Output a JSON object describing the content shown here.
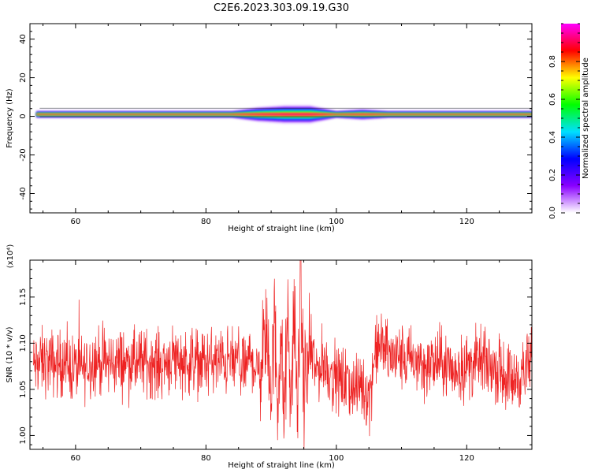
{
  "figure_title": "C2E6.2023.303.09.19.G30",
  "chart_data": [
    {
      "type": "heatmap",
      "title": "",
      "xlabel": "Height of straight line (km)",
      "ylabel": "Frequency (Hz)",
      "xlim": [
        53,
        130
      ],
      "ylim": [
        -50,
        48
      ],
      "xticks": [
        60,
        80,
        100,
        120
      ],
      "yticks": [
        -40,
        -20,
        0,
        20,
        40
      ],
      "xtick_labels": [
        "60",
        "80",
        "100",
        "120"
      ],
      "ytick_labels": [
        "-40",
        "-20",
        "0",
        "20",
        "40"
      ],
      "band_center_hz": 1,
      "band_halfwidth_hz": [
        [
          54,
          2
        ],
        [
          84,
          2
        ],
        [
          88,
          4
        ],
        [
          92,
          5
        ],
        [
          96,
          5
        ],
        [
          100,
          2
        ],
        [
          104,
          3
        ],
        [
          108,
          2
        ],
        [
          130,
          2
        ]
      ],
      "colorbar": {
        "label": "Normalized spectral amplitude",
        "range": [
          0,
          1
        ],
        "ticks": [
          0.0,
          0.2,
          0.4,
          0.6,
          0.8
        ],
        "tick_labels": [
          "0.0",
          "0.2",
          "0.4",
          "0.6",
          "0.8"
        ],
        "colormap": [
          "#ffffff",
          "#8a00ff",
          "#0000ff",
          "#00e0ff",
          "#00ff00",
          "#ffff00",
          "#ff0000",
          "#ff00ff"
        ]
      }
    },
    {
      "type": "line",
      "title": "",
      "xlabel": "Height of straight line (km)",
      "ylabel": "SNR (10 * v/v)",
      "y_scale_label": "(x10⁴)",
      "xlim": [
        53,
        130
      ],
      "ylim": [
        0.985,
        1.19
      ],
      "xticks": [
        60,
        80,
        100,
        120
      ],
      "yticks": [
        1.0,
        1.05,
        1.1,
        1.15
      ],
      "xtick_labels": [
        "60",
        "80",
        "100",
        "120"
      ],
      "ytick_labels": [
        "1.00",
        "1.05",
        "1.10",
        "1.15"
      ],
      "color": "#ee2222",
      "series": [
        {
          "x": [
            53.5,
            55,
            57,
            59,
            61,
            63,
            65,
            67,
            69,
            71,
            73,
            75,
            77,
            79,
            81,
            83,
            85,
            86,
            87,
            88,
            89,
            90,
            90.5,
            91,
            91.5,
            92,
            92.5,
            93,
            93.5,
            94,
            94.5,
            95,
            96,
            97,
            98,
            99,
            100,
            101,
            102,
            103,
            104,
            105,
            106,
            107,
            108,
            110,
            112,
            114,
            116,
            118,
            120,
            122,
            124,
            125,
            126,
            127,
            128,
            129,
            130
          ],
          "y": [
            1.075,
            1.08,
            1.078,
            1.075,
            1.072,
            1.082,
            1.078,
            1.08,
            1.078,
            1.08,
            1.076,
            1.085,
            1.08,
            1.08,
            1.08,
            1.08,
            1.08,
            1.07,
            1.09,
            1.06,
            1.11,
            1.05,
            1.12,
            1.04,
            1.11,
            1.01,
            1.13,
            1.02,
            1.15,
            1.01,
            1.17,
            1.05,
            1.09,
            1.07,
            1.08,
            1.07,
            1.06,
            1.06,
            1.055,
            1.05,
            1.055,
            1.04,
            1.09,
            1.1,
            1.085,
            1.085,
            1.08,
            1.075,
            1.08,
            1.07,
            1.075,
            1.08,
            1.075,
            1.07,
            1.065,
            1.06,
            1.065,
            1.07,
            1.08
          ],
          "noise_amplitude": 0.018
        }
      ]
    }
  ]
}
